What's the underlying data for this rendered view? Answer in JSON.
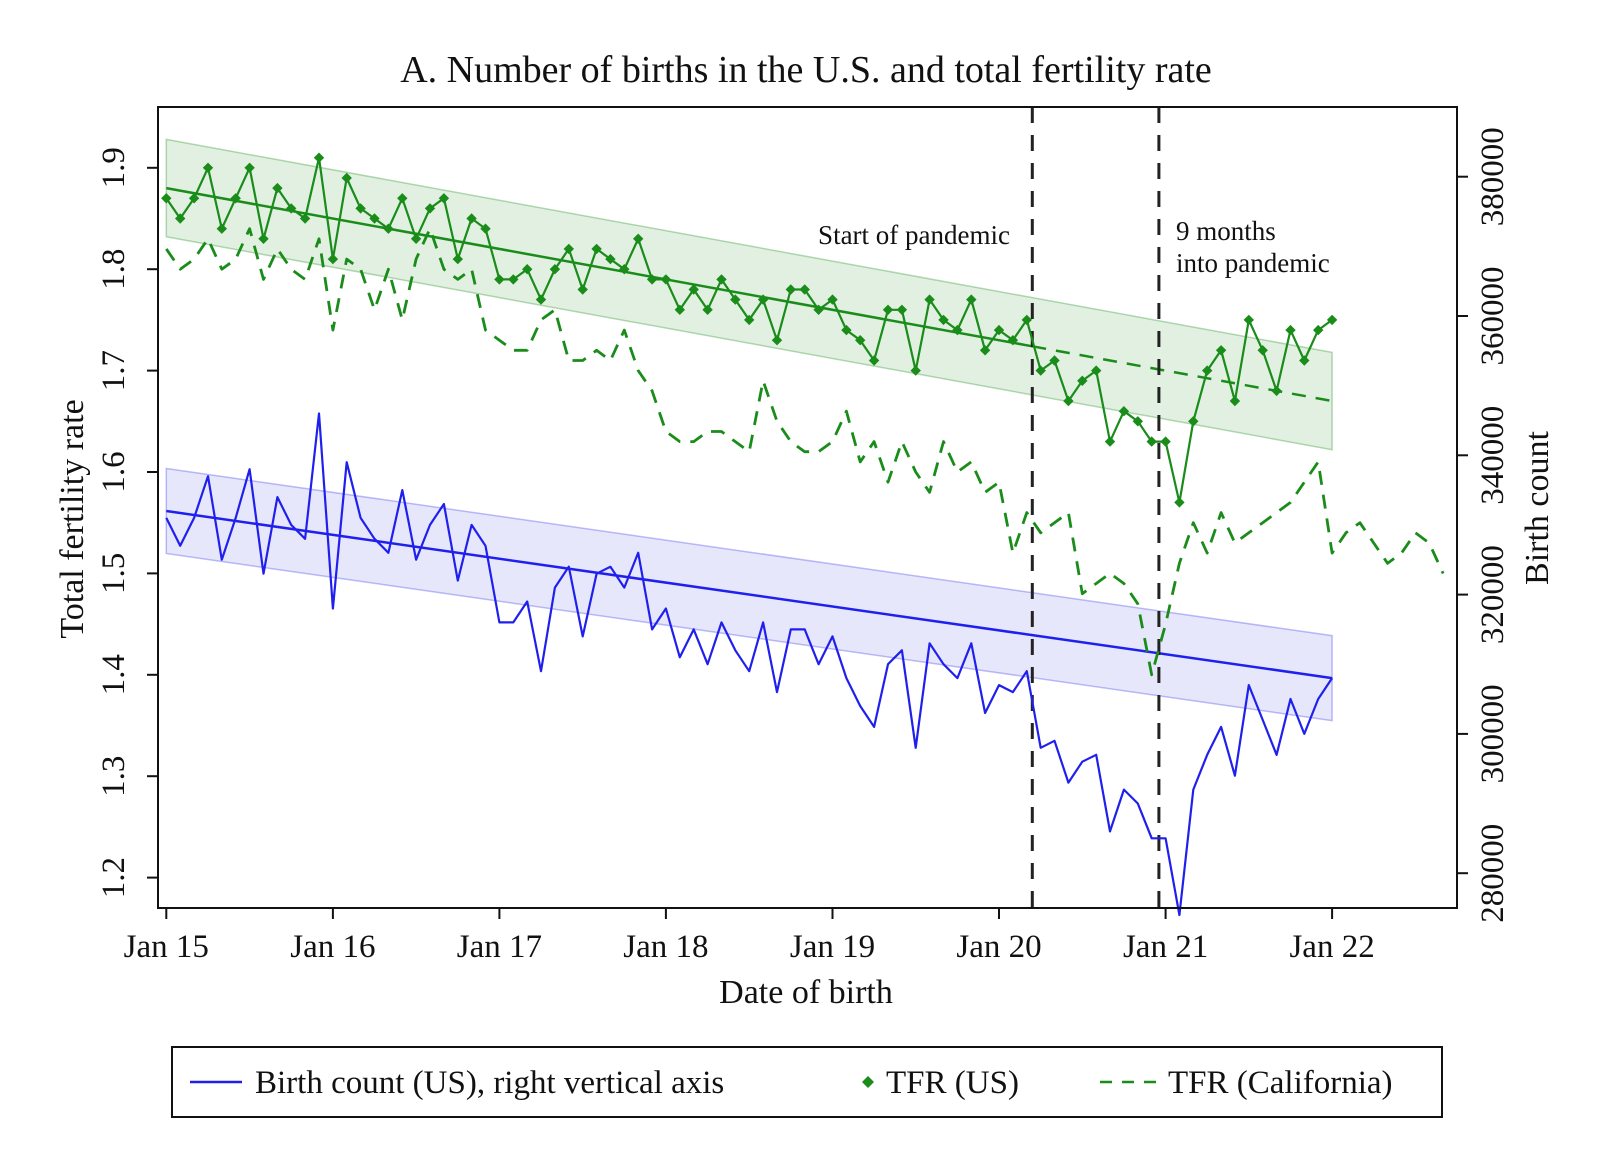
{
  "chart_data": {
    "type": "line",
    "title": "A. Number of births in the U.S. and total fertility rate",
    "xlabel": "Date of birth",
    "ylabel_left": "Total fertility rate",
    "ylabel_right": "Birth count",
    "x_range": [
      2014.95,
      2022.75
    ],
    "x_ticks": [
      {
        "value": 2015,
        "label": "Jan 15"
      },
      {
        "value": 2016,
        "label": "Jan 16"
      },
      {
        "value": 2017,
        "label": "Jan 17"
      },
      {
        "value": 2018,
        "label": "Jan 18"
      },
      {
        "value": 2019,
        "label": "Jan 19"
      },
      {
        "value": 2020,
        "label": "Jan 20"
      },
      {
        "value": 2021,
        "label": "Jan 21"
      },
      {
        "value": 2022,
        "label": "Jan 22"
      }
    ],
    "ylim_left": [
      1.17,
      1.96
    ],
    "yticks_left": [
      "1.2",
      "1.3",
      "1.4",
      "1.5",
      "1.6",
      "1.7",
      "1.8",
      "1.9"
    ],
    "ylim_right": [
      275000,
      390000
    ],
    "yticks_right": [
      "280000",
      "300000",
      "320000",
      "340000",
      "360000",
      "380000"
    ],
    "vertical_lines": [
      {
        "x": 2020.2,
        "label": "Start of pandemic"
      },
      {
        "x": 2020.96,
        "label": "9 months into pandemic"
      }
    ],
    "annotations": [
      "Start of pandemic",
      "9 months",
      "into pandemic"
    ],
    "series": [
      {
        "name": "TFR (US)",
        "axis": "left",
        "color": "#1a8c1a",
        "style": "solid-diamond-markers",
        "x_start": 2015,
        "step_months": 1,
        "values": [
          1.87,
          1.85,
          1.87,
          1.9,
          1.84,
          1.87,
          1.9,
          1.83,
          1.88,
          1.86,
          1.85,
          1.91,
          1.81,
          1.89,
          1.86,
          1.85,
          1.84,
          1.87,
          1.83,
          1.86,
          1.87,
          1.81,
          1.85,
          1.84,
          1.79,
          1.79,
          1.8,
          1.77,
          1.8,
          1.82,
          1.78,
          1.82,
          1.81,
          1.8,
          1.83,
          1.79,
          1.79,
          1.76,
          1.78,
          1.76,
          1.79,
          1.77,
          1.75,
          1.77,
          1.73,
          1.78,
          1.78,
          1.76,
          1.77,
          1.74,
          1.73,
          1.71,
          1.76,
          1.76,
          1.7,
          1.77,
          1.75,
          1.74,
          1.77,
          1.72,
          1.74,
          1.73,
          1.75,
          1.7,
          1.71,
          1.67,
          1.69,
          1.7,
          1.63,
          1.66,
          1.65,
          1.63,
          1.63,
          1.57,
          1.65,
          1.7,
          1.72,
          1.67,
          1.75,
          1.72,
          1.68,
          1.74,
          1.71,
          1.74,
          1.75
        ]
      },
      {
        "name": "TFR (California)",
        "axis": "left",
        "color": "#1a8c1a",
        "style": "dashed",
        "x_start": 2015,
        "step_months": 1,
        "values": [
          1.82,
          1.8,
          1.81,
          1.83,
          1.8,
          1.81,
          1.84,
          1.79,
          1.82,
          1.8,
          1.79,
          1.83,
          1.74,
          1.81,
          1.8,
          1.76,
          1.8,
          1.75,
          1.81,
          1.84,
          1.8,
          1.79,
          1.8,
          1.74,
          1.73,
          1.72,
          1.72,
          1.75,
          1.76,
          1.71,
          1.71,
          1.72,
          1.71,
          1.74,
          1.7,
          1.68,
          1.64,
          1.63,
          1.63,
          1.64,
          1.64,
          1.63,
          1.62,
          1.69,
          1.65,
          1.63,
          1.62,
          1.62,
          1.63,
          1.66,
          1.61,
          1.63,
          1.59,
          1.63,
          1.6,
          1.58,
          1.63,
          1.6,
          1.61,
          1.58,
          1.59,
          1.52,
          1.56,
          1.54,
          1.55,
          1.56,
          1.48,
          1.49,
          1.5,
          1.49,
          1.47,
          1.4,
          1.45,
          1.51,
          1.55,
          1.52,
          1.56,
          1.53,
          1.54,
          1.55,
          1.56,
          1.57,
          1.59,
          1.61,
          1.52,
          1.54,
          1.55,
          1.53,
          1.51,
          1.52,
          1.54,
          1.53,
          1.5
        ]
      },
      {
        "name": "Birth count (US), right vertical axis",
        "axis": "right",
        "color": "#2020ee",
        "style": "solid",
        "x_start": 2015,
        "step_months": 1,
        "values": [
          331000,
          327000,
          331000,
          337000,
          325000,
          331000,
          338000,
          323000,
          334000,
          330000,
          328000,
          346000,
          318000,
          339000,
          331000,
          328000,
          326000,
          335000,
          325000,
          330000,
          333000,
          322000,
          330000,
          327000,
          316000,
          316000,
          319000,
          309000,
          321000,
          324000,
          314000,
          323000,
          324000,
          321000,
          326000,
          315000,
          318000,
          311000,
          315000,
          310000,
          316000,
          312000,
          309000,
          316000,
          306000,
          315000,
          315000,
          310000,
          314000,
          308000,
          304000,
          301000,
          310000,
          312000,
          298000,
          313000,
          310000,
          308000,
          313000,
          303000,
          307000,
          306000,
          309000,
          298000,
          299000,
          293000,
          296000,
          297000,
          286000,
          292000,
          290000,
          285000,
          285000,
          274000,
          292000,
          297000,
          301000,
          294000,
          307000,
          302000,
          297000,
          305000,
          300000,
          305000,
          308000
        ]
      }
    ],
    "trends": [
      {
        "series": "TFR (US)",
        "axis": "left",
        "x_start": 2015,
        "x_end": 2022,
        "y_start": 1.88,
        "y_end": 1.67,
        "band_halfwidth": 0.048,
        "dashed_from": 2020.2
      },
      {
        "series": "Birth count (US)",
        "axis": "right",
        "x_start": 2015,
        "x_end": 2022,
        "y_start": 332000,
        "y_end": 308000,
        "band_halfwidth": 6100
      }
    ],
    "legend": {
      "position": "bottom",
      "entries": [
        {
          "label": "Birth count (US), right vertical axis",
          "symbol": "line",
          "color": "#2020ee"
        },
        {
          "label": "TFR (US)",
          "symbol": "diamond",
          "color": "#1a8c1a"
        },
        {
          "label": "TFR (California)",
          "symbol": "dashed",
          "color": "#1a8c1a"
        }
      ]
    }
  }
}
